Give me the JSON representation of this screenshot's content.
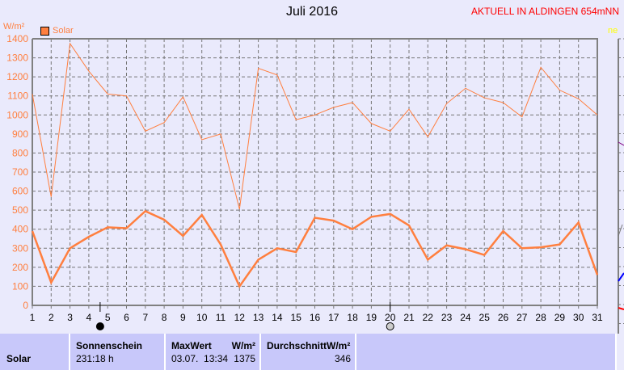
{
  "header": {
    "title": "Juli 2016",
    "status": "AKTUELL IN ALDINGEN 654mNN",
    "side_label": "ne"
  },
  "chart_data": {
    "type": "line",
    "title": "Juli 2016",
    "ylabel": "W/m²",
    "legend": [
      "Solar"
    ],
    "legend_position": "top-left",
    "grid": true,
    "ylim": [
      0,
      1400
    ],
    "yticks": [
      0,
      100,
      200,
      300,
      400,
      500,
      600,
      700,
      800,
      900,
      1000,
      1100,
      1200,
      1300,
      1400
    ],
    "x": [
      1,
      2,
      3,
      4,
      5,
      6,
      7,
      8,
      9,
      10,
      11,
      12,
      13,
      14,
      15,
      16,
      17,
      18,
      19,
      20,
      21,
      22,
      23,
      24,
      25,
      26,
      27,
      28,
      29,
      30,
      31
    ],
    "series": [
      {
        "style": "thin",
        "color": "#ff7f3f",
        "values": [
          1110,
          570,
          1375,
          1230,
          1110,
          1100,
          915,
          960,
          1095,
          870,
          900,
          505,
          1245,
          1210,
          975,
          1000,
          1040,
          1065,
          955,
          915,
          1030,
          885,
          1060,
          1140,
          1090,
          1065,
          990,
          1250,
          1130,
          1085,
          1000
        ]
      },
      {
        "style": "thick",
        "color": "#ff7f3f",
        "values": [
          390,
          120,
          300,
          360,
          410,
          405,
          495,
          450,
          365,
          475,
          320,
          100,
          240,
          300,
          280,
          460,
          445,
          400,
          465,
          480,
          420,
          240,
          315,
          295,
          265,
          390,
          300,
          305,
          320,
          435,
          160
        ]
      }
    ],
    "moon_markers": [
      {
        "day": 4.6,
        "phase": "new-moon"
      },
      {
        "day": 20,
        "phase": "full-moon"
      }
    ]
  },
  "table": {
    "row_label": "Solar",
    "sunshine": {
      "label": "Sonnenschein",
      "value": "231:18 h"
    },
    "max": {
      "label": "MaxWert",
      "unit": "W/m²",
      "date": "03.07.  13:34",
      "value": "1375"
    },
    "avg": {
      "label": "DurchschnittW/m²",
      "value": "346"
    }
  }
}
